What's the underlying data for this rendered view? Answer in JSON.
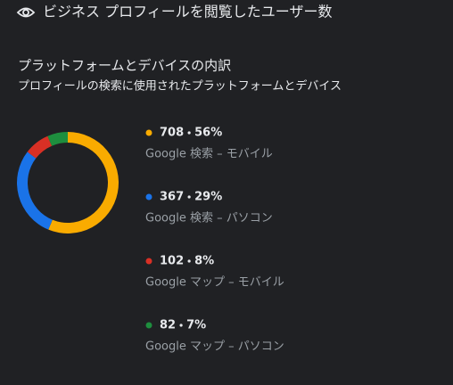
{
  "header": {
    "title": "ビジネス プロフィールを閲覧したユーザー数"
  },
  "chart_data": {
    "type": "donut",
    "title": "プラットフォームとデバイスの内訳",
    "subtitle": "プロフィールの検索に使用されたプラットフォームとデバイス",
    "categories": [
      "Google 検索 – モバイル",
      "Google 検索 – パソコン",
      "Google マップ – モバイル",
      "Google マップ – パソコン"
    ],
    "values": [
      708,
      367,
      102,
      82
    ],
    "shares": [
      56,
      29,
      8,
      7
    ],
    "share_labels": [
      "56%",
      "29%",
      "8%",
      "7%"
    ],
    "colors": [
      "#f9ab00",
      "#1a73e8",
      "#d93025",
      "#1e8e3e"
    ]
  }
}
